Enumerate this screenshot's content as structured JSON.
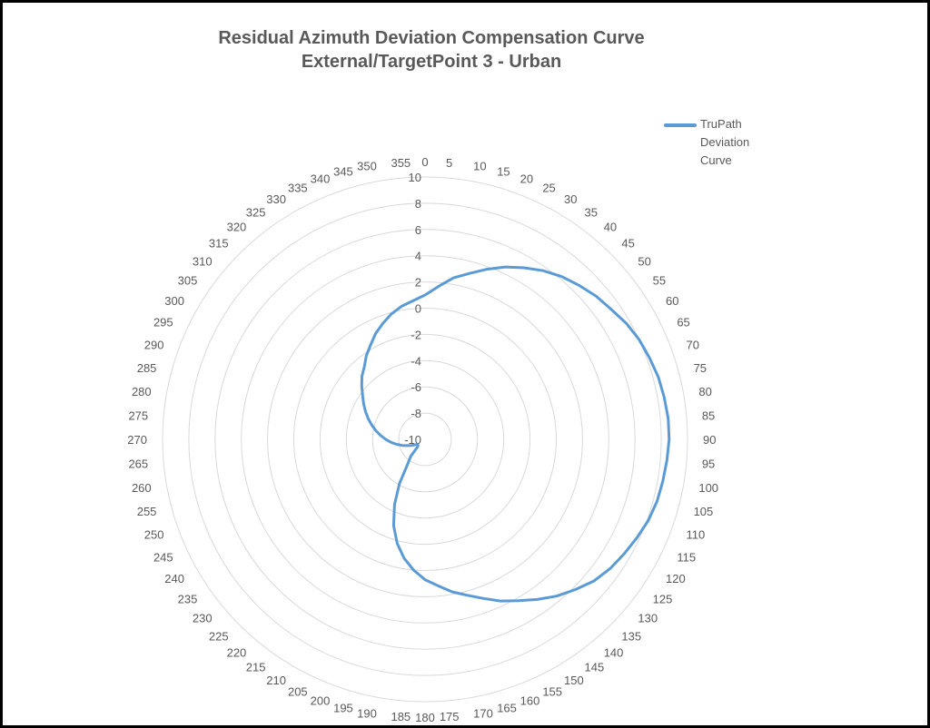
{
  "chart_data": {
    "type": "radar",
    "title_lines": [
      "Residual Azimuth  Deviation Compensation  Curve",
      "External/TargetPoint 3 - Urban"
    ],
    "angle_labels": [
      "0",
      "5",
      "10",
      "15",
      "20",
      "25",
      "30",
      "35",
      "40",
      "45",
      "50",
      "55",
      "60",
      "65",
      "70",
      "75",
      "80",
      "85",
      "90",
      "95",
      "100",
      "105",
      "110",
      "115",
      "120",
      "125",
      "130",
      "135",
      "140",
      "145",
      "150",
      "155",
      "160",
      "165",
      "170",
      "175",
      "180",
      "185",
      "190",
      "195",
      "200",
      "205",
      "210",
      "215",
      "220",
      "225",
      "230",
      "235",
      "240",
      "245",
      "250",
      "255",
      "260",
      "265",
      "270",
      "275",
      "280",
      "285",
      "290",
      "295",
      "300",
      "305",
      "310",
      "315",
      "320",
      "325",
      "330",
      "335",
      "340",
      "345",
      "350",
      "355"
    ],
    "radial_ticks": [
      10,
      8,
      6,
      4,
      2,
      0,
      -2,
      -4,
      -6,
      -8,
      -10
    ],
    "radial_range": [
      -10,
      10
    ],
    "grid": true,
    "legend_position": "top-right",
    "series": [
      {
        "name": "TruPath Deviation Curve",
        "color": "#5b9bd5",
        "values": [
          1.0,
          1.7,
          2.5,
          3.1,
          3.8,
          4.5,
          5.1,
          5.7,
          6.2,
          6.6,
          7.0,
          7.3,
          7.7,
          8.0,
          8.2,
          8.4,
          8.5,
          8.6,
          8.6,
          8.5,
          8.4,
          8.3,
          8.1,
          7.8,
          7.5,
          7.2,
          6.8,
          6.2,
          5.6,
          4.9,
          4.2,
          3.6,
          2.9,
          2.3,
          1.8,
          1.2,
          0.7,
          0.0,
          -0.8,
          -1.8,
          -3.0,
          -4.5,
          -6.1,
          -7.7,
          -8.3,
          -9.2,
          -9.3,
          -9.3,
          -9.2,
          -8.9,
          -8.6,
          -8.2,
          -7.8,
          -7.4,
          -7.0,
          -6.6,
          -6.2,
          -5.8,
          -5.4,
          -5.0,
          -4.6,
          -4.2,
          -3.7,
          -3.2,
          -2.8,
          -2.2,
          -1.7,
          -1.1,
          -0.6,
          -0.1,
          0.3,
          0.6
        ]
      }
    ]
  }
}
